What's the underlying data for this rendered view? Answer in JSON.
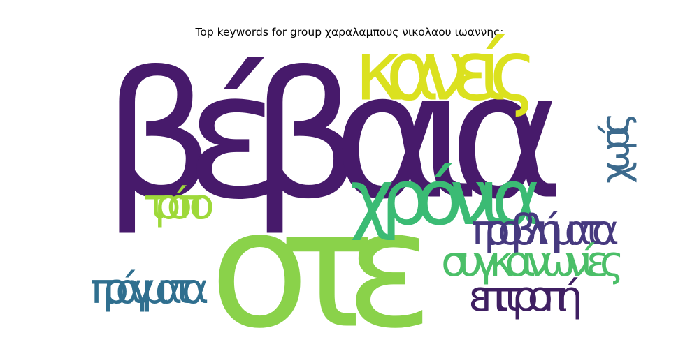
{
  "chart_data": {
    "type": "wordcloud",
    "title": "Top keywords for group χαραλαμπους νικολαου ιωαννης:",
    "words": [
      {
        "text": "βέβαια",
        "weight": 1.0,
        "color": "#471a6b",
        "orientation": "horizontal"
      },
      {
        "text": "οτε",
        "weight": 0.93,
        "color": "#8ad24a",
        "orientation": "horizontal"
      },
      {
        "text": "κανείς",
        "weight": 0.47,
        "color": "#dbe11f",
        "orientation": "horizontal"
      },
      {
        "text": "χρόνια",
        "weight": 0.44,
        "color": "#3bbb74",
        "orientation": "horizontal"
      },
      {
        "text": "χωρίς",
        "weight": 0.22,
        "color": "#3c6a8d",
        "orientation": "vertical"
      },
      {
        "text": "τρόπο",
        "weight": 0.24,
        "color": "#9ed93a",
        "orientation": "horizontal"
      },
      {
        "text": "προβλήματα",
        "weight": 0.24,
        "color": "#46397f",
        "orientation": "horizontal"
      },
      {
        "text": "συγκοινωνίες",
        "weight": 0.24,
        "color": "#4bbf68",
        "orientation": "horizontal"
      },
      {
        "text": "πράγματα",
        "weight": 0.24,
        "color": "#2f6f8f",
        "orientation": "horizontal"
      },
      {
        "text": "επιτροπή",
        "weight": 0.24,
        "color": "#3f1f62",
        "orientation": "horizontal"
      }
    ]
  }
}
